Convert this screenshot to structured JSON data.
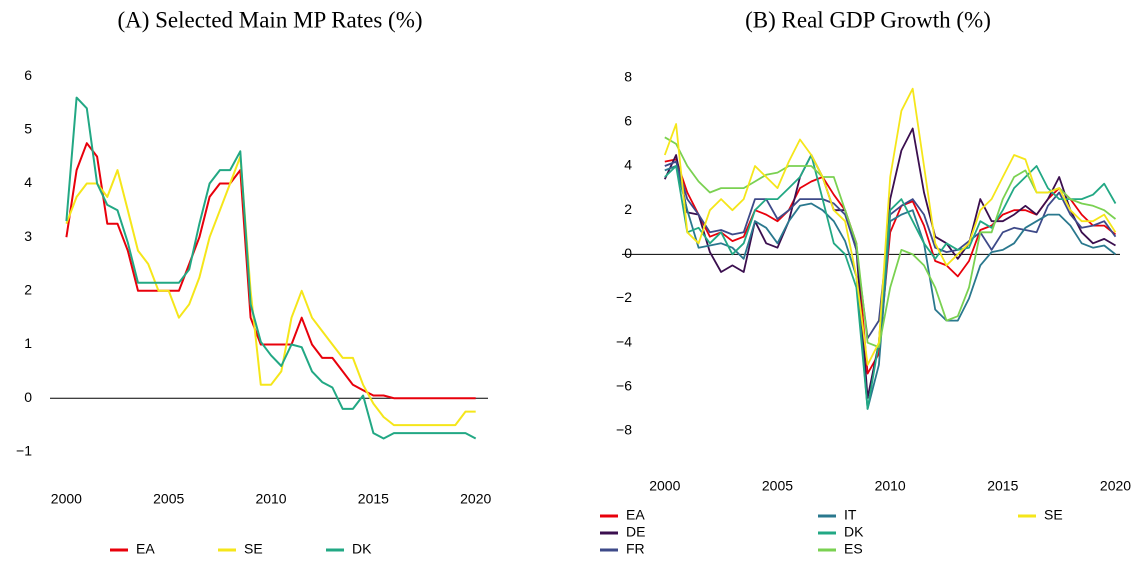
{
  "chart_data": [
    {
      "type": "line",
      "title": "(A) Selected Main MP Rates (%)",
      "x": [
        2000,
        2000.5,
        2001,
        2001.5,
        2002,
        2002.5,
        2003,
        2003.5,
        2004,
        2004.5,
        2005,
        2005.5,
        2006,
        2006.5,
        2007,
        2007.5,
        2008,
        2008.5,
        2009,
        2009.5,
        2010,
        2010.5,
        2011,
        2011.5,
        2012,
        2012.5,
        2013,
        2013.5,
        2014,
        2014.5,
        2015,
        2015.5,
        2016,
        2016.5,
        2017,
        2017.5,
        2018,
        2018.5,
        2019,
        2019.5,
        2020
      ],
      "series": [
        {
          "name": "EA",
          "color": "#e8000b",
          "values": [
            3.0,
            4.25,
            4.75,
            4.5,
            3.25,
            3.25,
            2.75,
            2.0,
            2.0,
            2.0,
            2.0,
            2.0,
            2.5,
            3.0,
            3.75,
            4.0,
            4.0,
            4.25,
            1.5,
            1.0,
            1.0,
            1.0,
            1.0,
            1.5,
            1.0,
            0.75,
            0.75,
            0.5,
            0.25,
            0.15,
            0.05,
            0.05,
            0,
            0,
            0,
            0,
            0,
            0,
            0,
            0,
            0
          ]
        },
        {
          "name": "SE",
          "color": "#f5e61a",
          "values": [
            3.25,
            3.75,
            4.0,
            4.0,
            3.75,
            4.25,
            3.5,
            2.75,
            2.5,
            2.0,
            2.0,
            1.5,
            1.75,
            2.25,
            3.0,
            3.5,
            4.0,
            4.5,
            2.0,
            0.25,
            0.25,
            0.5,
            1.5,
            2.0,
            1.5,
            1.25,
            1.0,
            0.75,
            0.75,
            0.25,
            -0.1,
            -0.35,
            -0.5,
            -0.5,
            -0.5,
            -0.5,
            -0.5,
            -0.5,
            -0.5,
            -0.25,
            -0.25
          ]
        },
        {
          "name": "DK",
          "color": "#22a884",
          "values": [
            3.3,
            5.6,
            5.4,
            4.0,
            3.6,
            3.5,
            2.9,
            2.15,
            2.15,
            2.15,
            2.15,
            2.15,
            2.4,
            3.25,
            4.0,
            4.25,
            4.25,
            4.6,
            1.75,
            1.05,
            0.8,
            0.6,
            1.0,
            0.95,
            0.5,
            0.3,
            0.2,
            -0.2,
            -0.2,
            0.05,
            -0.65,
            -0.75,
            -0.65,
            -0.65,
            -0.65,
            -0.65,
            -0.65,
            -0.65,
            -0.65,
            -0.65,
            -0.75
          ]
        }
      ],
      "xlim": [
        1999.2,
        2020.6
      ],
      "xticks": [
        2000,
        2005,
        2010,
        2015,
        2020
      ],
      "ylim": [
        -1.3,
        6.3
      ],
      "yticks": [
        {
          "value": -1,
          "label": "−1"
        },
        0,
        1,
        2,
        3,
        4,
        5,
        6
      ]
    },
    {
      "type": "line",
      "title": "(B) Real GDP Growth (%)",
      "x": [
        2000,
        2000.5,
        2001,
        2001.5,
        2002,
        2002.5,
        2003,
        2003.5,
        2004,
        2004.5,
        2005,
        2005.5,
        2006,
        2006.5,
        2007,
        2007.5,
        2008,
        2008.5,
        2009,
        2009.5,
        2010,
        2010.5,
        2011,
        2011.5,
        2012,
        2012.5,
        2013,
        2013.5,
        2014,
        2014.5,
        2015,
        2015.5,
        2016,
        2016.5,
        2017,
        2017.5,
        2018,
        2018.5,
        2019,
        2019.5,
        2020
      ],
      "series": [
        {
          "name": "EA",
          "color": "#e8000b",
          "values": [
            4.2,
            4.3,
            2.8,
            1.8,
            0.8,
            1.0,
            0.6,
            0.8,
            2.0,
            1.8,
            1.5,
            2.0,
            3.0,
            3.3,
            3.5,
            2.7,
            2.0,
            0.5,
            -5.4,
            -4.5,
            1.0,
            2.2,
            2.4,
            1.3,
            -0.3,
            -0.5,
            -1.0,
            -0.3,
            1.1,
            1.3,
            1.8,
            2.0,
            2.0,
            1.8,
            2.5,
            3.0,
            2.5,
            1.8,
            1.3,
            1.3,
            0.9
          ]
        },
        {
          "name": "DE",
          "color": "#3b0f4f",
          "values": [
            3.4,
            4.5,
            1.9,
            1.8,
            0.1,
            -0.8,
            -0.5,
            -0.8,
            1.5,
            0.5,
            0.3,
            1.5,
            3.5,
            4.5,
            3.5,
            2.0,
            2.0,
            0.2,
            -6.5,
            -4.0,
            2.5,
            4.7,
            5.7,
            2.8,
            0.8,
            0.5,
            -0.2,
            0.5,
            2.5,
            1.5,
            1.5,
            1.8,
            2.2,
            1.8,
            2.5,
            3.5,
            2.0,
            1.0,
            0.5,
            0.7,
            0.4
          ]
        },
        {
          "name": "FR",
          "color": "#3e4a89",
          "values": [
            4.0,
            4.2,
            2.5,
            1.8,
            1.0,
            1.1,
            0.9,
            1.0,
            2.5,
            2.5,
            1.6,
            2.0,
            2.5,
            2.5,
            2.5,
            2.3,
            1.8,
            0.2,
            -3.8,
            -3.0,
            1.8,
            2.2,
            2.5,
            1.8,
            0.3,
            0.1,
            0.2,
            0.6,
            1.0,
            0.2,
            1.0,
            1.2,
            1.1,
            1.0,
            2.2,
            2.8,
            1.8,
            1.2,
            1.3,
            1.5,
            0.8
          ]
        },
        {
          "name": "IT",
          "color": "#2a788e",
          "values": [
            3.8,
            4.0,
            2.0,
            0.3,
            0.4,
            0.5,
            0.3,
            -0.2,
            1.5,
            1.2,
            0.5,
            1.5,
            2.2,
            2.3,
            2.0,
            1.5,
            0.6,
            -1.0,
            -7.0,
            -5.0,
            1.5,
            1.8,
            2.0,
            0.5,
            -2.5,
            -3.0,
            -3.0,
            -2.0,
            -0.5,
            0.1,
            0.2,
            0.5,
            1.2,
            1.5,
            1.8,
            1.8,
            1.3,
            0.5,
            0.3,
            0.4,
            0.0
          ]
        },
        {
          "name": "DK",
          "color": "#22a884",
          "values": [
            3.5,
            4.0,
            1.0,
            1.2,
            0.5,
            1.0,
            0.0,
            0.5,
            2.0,
            2.5,
            2.5,
            3.0,
            3.5,
            4.5,
            2.5,
            0.5,
            0.0,
            -1.5,
            -7.0,
            -4.0,
            2.0,
            2.5,
            1.5,
            0.5,
            -0.2,
            0.5,
            0.2,
            0.3,
            1.5,
            1.2,
            2.0,
            3.0,
            3.5,
            4.0,
            3.0,
            2.5,
            2.5,
            2.5,
            2.7,
            3.2,
            2.3
          ]
        },
        {
          "name": "ES",
          "color": "#7ad151",
          "values": [
            5.3,
            5.0,
            4.0,
            3.3,
            2.8,
            3.0,
            3.0,
            3.0,
            3.3,
            3.6,
            3.7,
            4.0,
            4.0,
            4.0,
            3.5,
            3.5,
            2.0,
            0.5,
            -4.0,
            -4.2,
            -1.5,
            0.2,
            0.0,
            -0.5,
            -1.5,
            -3.0,
            -2.8,
            -1.5,
            1.0,
            1.0,
            2.5,
            3.5,
            3.8,
            2.8,
            2.8,
            3.0,
            2.5,
            2.3,
            2.2,
            2.0,
            1.6
          ]
        },
        {
          "name": "SE",
          "color": "#f5e61a",
          "values": [
            4.5,
            5.9,
            1.0,
            0.5,
            2.0,
            2.5,
            2.0,
            2.5,
            4.0,
            3.5,
            3.0,
            4.2,
            5.2,
            4.5,
            3.5,
            2.0,
            1.5,
            -1.0,
            -5.0,
            -4.0,
            3.5,
            6.5,
            7.5,
            4.0,
            0.5,
            -0.5,
            0.0,
            0.5,
            2.0,
            2.5,
            3.5,
            4.5,
            4.3,
            2.8,
            2.8,
            3.0,
            2.0,
            1.5,
            1.5,
            1.8,
            1.0
          ]
        }
      ],
      "xlim": [
        1998.1,
        2020.2
      ],
      "xticks": [
        2000,
        2005,
        2010,
        2015,
        2020
      ],
      "ylim": [
        -9.2,
        8.8
      ],
      "yticks": [
        {
          "value": -8,
          "label": "−8"
        },
        {
          "value": -6,
          "label": "−6"
        },
        {
          "value": -4,
          "label": "−4"
        },
        {
          "value": -2,
          "label": "−2"
        },
        0,
        2,
        4,
        6,
        8
      ]
    }
  ]
}
